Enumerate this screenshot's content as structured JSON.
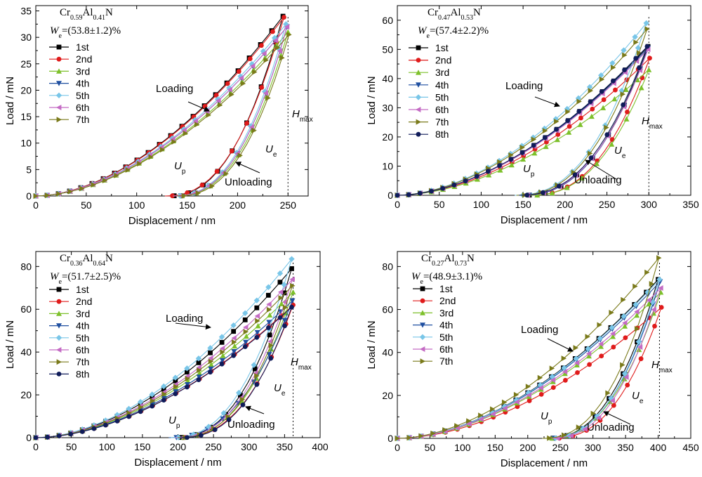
{
  "series_styles": [
    {
      "color": "#000000",
      "marker": "square"
    },
    {
      "color": "#e01b1b",
      "marker": "circle"
    },
    {
      "color": "#7dc02a",
      "marker": "triangle-up"
    },
    {
      "color": "#1f4fa0",
      "marker": "triangle-down"
    },
    {
      "color": "#79c6e8",
      "marker": "diamond"
    },
    {
      "color": "#c46bc4",
      "marker": "triangle-left"
    },
    {
      "color": "#7a7a1a",
      "marker": "triangle-right"
    },
    {
      "color": "#101c5a",
      "marker": "circle"
    }
  ],
  "chart_data": [
    {
      "type": "line",
      "title": "Cr0.59Al0.41N",
      "title_parts": {
        "base1": "Cr",
        "sub1": "0.59",
        "base2": "Al",
        "sub2": "0.41",
        "base3": "N"
      },
      "we": {
        "base": "W",
        "sub": "e",
        "rest": "=(53.8±1.2)%"
      },
      "xlabel": "Displacement / nm",
      "ylabel": "Load / mN",
      "xlim": [
        0,
        270
      ],
      "ylim": [
        0,
        36
      ],
      "xticks": [
        0,
        50,
        100,
        150,
        200,
        250
      ],
      "yticks": [
        0,
        5,
        10,
        15,
        20,
        25,
        30,
        35
      ],
      "legend_position": "top-left",
      "hmax_x": 250,
      "labels": {
        "loading": "Loading",
        "unloading": "Unloading",
        "up": "U",
        "up_sub": "p",
        "ue": "U",
        "ue_sub": "e",
        "hmax": "H",
        "hmax_sub": "max"
      },
      "series": [
        {
          "name": "1st",
          "hmax": 245,
          "pmax": 34.0,
          "hf": 130
        },
        {
          "name": "2nd",
          "hmax": 246,
          "pmax": 33.8,
          "hf": 128
        },
        {
          "name": "3rd",
          "hmax": 250,
          "pmax": 31.0,
          "hf": 138
        },
        {
          "name": "4th",
          "hmax": 249,
          "pmax": 32.0,
          "hf": 137
        },
        {
          "name": "5th",
          "hmax": 248,
          "pmax": 32.5,
          "hf": 136
        },
        {
          "name": "6th",
          "hmax": 249,
          "pmax": 32.0,
          "hf": 137
        },
        {
          "name": "7th",
          "hmax": 251,
          "pmax": 30.5,
          "hf": 140
        }
      ]
    },
    {
      "type": "line",
      "title": "Cr0.47Al0.53N",
      "title_parts": {
        "base1": "Cr",
        "sub1": "0.47",
        "base2": "Al",
        "sub2": "0.53",
        "base3": "N"
      },
      "we": {
        "base": "W",
        "sub": "e",
        "rest": "=(57.4±2.2)%"
      },
      "xlabel": "Displacement / nm",
      "ylabel": "Load / mN",
      "xlim": [
        0,
        350
      ],
      "ylim": [
        0,
        65
      ],
      "xticks": [
        0,
        50,
        100,
        150,
        200,
        250,
        300,
        350
      ],
      "yticks": [
        0,
        10,
        20,
        30,
        40,
        50,
        60
      ],
      "legend_position": "top-left",
      "hmax_x": 300,
      "labels": {
        "loading": "Loading",
        "unloading": "Unloading",
        "up": "U",
        "up_sub": "p",
        "ue": "U",
        "ue_sub": "e",
        "hmax": "H",
        "hmax_sub": "max"
      },
      "series": [
        {
          "name": "1st",
          "hmax": 299,
          "pmax": 51.0,
          "hf": 148
        },
        {
          "name": "2nd",
          "hmax": 301,
          "pmax": 47.0,
          "hf": 158
        },
        {
          "name": "3rd",
          "hmax": 300,
          "pmax": 43.0,
          "hf": 158
        },
        {
          "name": "4th",
          "hmax": 299,
          "pmax": 50.5,
          "hf": 148
        },
        {
          "name": "5th",
          "hmax": 297,
          "pmax": 59.0,
          "hf": 140
        },
        {
          "name": "6th",
          "hmax": 299,
          "pmax": 50.0,
          "hf": 146
        },
        {
          "name": "7th",
          "hmax": 298,
          "pmax": 57.0,
          "hf": 142
        },
        {
          "name": "8th",
          "hmax": 298,
          "pmax": 51.0,
          "hf": 145
        }
      ]
    },
    {
      "type": "line",
      "title": "Cr0.36Al0.64N",
      "title_parts": {
        "base1": "Cr",
        "sub1": "0.36",
        "base2": "Al",
        "sub2": "0.64",
        "base3": "N"
      },
      "we": {
        "base": "W",
        "sub": "e",
        "rest": "=(51.7±2.5)%"
      },
      "xlabel": "Displacement / nm",
      "ylabel": "Load / mN",
      "xlim": [
        0,
        400
      ],
      "ylim": [
        0,
        87
      ],
      "xticks": [
        0,
        50,
        100,
        150,
        200,
        250,
        300,
        350,
        400
      ],
      "yticks": [
        0,
        20,
        40,
        60,
        80
      ],
      "legend_position": "top-left",
      "hmax_x": 362,
      "labels": {
        "loading": "Loading",
        "unloading": "Unloading",
        "up": "U",
        "up_sub": "p",
        "ue": "U",
        "ue_sub": "e",
        "hmax": "H",
        "hmax_sub": "max"
      },
      "series": [
        {
          "name": "1st",
          "hmax": 360,
          "pmax": 79.0,
          "hf": 195
        },
        {
          "name": "2nd",
          "hmax": 362,
          "pmax": 62.0,
          "hf": 200
        },
        {
          "name": "3rd",
          "hmax": 362,
          "pmax": 68.0,
          "hf": 198
        },
        {
          "name": "4th",
          "hmax": 361,
          "pmax": 64.0,
          "hf": 187
        },
        {
          "name": "5th",
          "hmax": 360,
          "pmax": 83.5,
          "hf": 190
        },
        {
          "name": "6th",
          "hmax": 361,
          "pmax": 74.0,
          "hf": 196
        },
        {
          "name": "7th",
          "hmax": 361,
          "pmax": 71.0,
          "hf": 200
        },
        {
          "name": "8th",
          "hmax": 360,
          "pmax": 61.0,
          "hf": 203
        }
      ]
    },
    {
      "type": "line",
      "title": "Cr0.27Al0.73N",
      "title_parts": {
        "base1": "Cr",
        "sub1": "0.27",
        "base2": "Al",
        "sub2": "0.73",
        "base3": "N"
      },
      "we": {
        "base": "W",
        "sub": "e",
        "rest": "=(48.9±3.1)%"
      },
      "xlabel": "Displacement / nm",
      "ylabel": "Load / mN",
      "xlim": [
        0,
        450
      ],
      "ylim": [
        0,
        87
      ],
      "xticks": [
        0,
        50,
        100,
        150,
        200,
        250,
        300,
        350,
        400,
        450
      ],
      "yticks": [
        0,
        20,
        40,
        60,
        80
      ],
      "legend_position": "top-left",
      "hmax_x": 402,
      "labels": {
        "loading": "Loading",
        "unloading": "Unloading",
        "up": "U",
        "up_sub": "p",
        "ue": "U",
        "ue_sub": "e",
        "hmax": "H",
        "hmax_sub": "max"
      },
      "series": [
        {
          "name": "1st",
          "hmax": 400,
          "pmax": 74.0,
          "hf": 228
        },
        {
          "name": "2nd",
          "hmax": 405,
          "pmax": 61.0,
          "hf": 238
        },
        {
          "name": "3rd",
          "hmax": 404,
          "pmax": 68.0,
          "hf": 226
        },
        {
          "name": "4th",
          "hmax": 403,
          "pmax": 73.0,
          "hf": 230
        },
        {
          "name": "5th",
          "hmax": 402,
          "pmax": 74.0,
          "hf": 232
        },
        {
          "name": "6th",
          "hmax": 404,
          "pmax": 70.0,
          "hf": 235
        },
        {
          "name": "7th",
          "hmax": 401,
          "pmax": 84.0,
          "hf": 222
        }
      ]
    }
  ]
}
